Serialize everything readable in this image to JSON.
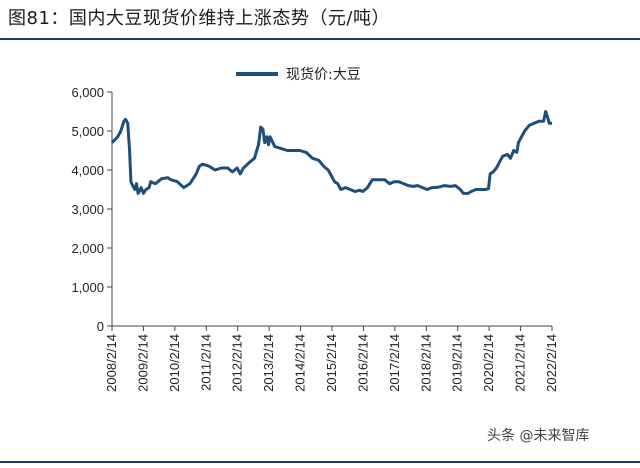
{
  "title": "图81：国内大豆现货价维持上涨态势（元/吨）",
  "watermark": "头条 @未来智库",
  "colors": {
    "series": "#1f4e79",
    "rule": "#1f3864",
    "axis": "#444444"
  },
  "chart_data": {
    "type": "line",
    "title": "",
    "xlabel": "",
    "ylabel": "",
    "ylim": [
      0,
      6000
    ],
    "yticks": [
      0,
      1000,
      2000,
      3000,
      4000,
      5000,
      6000
    ],
    "ytick_labels": [
      "0",
      "1,000",
      "2,000",
      "3,000",
      "4,000",
      "5,000",
      "6,000"
    ],
    "xtick_labels": [
      "2008/2/14",
      "2009/2/14",
      "2010/2/14",
      "2011/2/14",
      "2012/2/14",
      "2013/2/14",
      "2014/2/14",
      "2015/2/14",
      "2016/2/14",
      "2017/2/14",
      "2018/2/14",
      "2019/2/14",
      "2020/2/14",
      "2021/2/14",
      "2022/2/14"
    ],
    "xlim": [
      2008.12,
      2022.12
    ],
    "grid": false,
    "legend_position": "top-center",
    "series": [
      {
        "name": "现货价:大豆",
        "points": [
          [
            2008.12,
            4700
          ],
          [
            2008.3,
            4850
          ],
          [
            2008.4,
            5000
          ],
          [
            2008.5,
            5250
          ],
          [
            2008.55,
            5300
          ],
          [
            2008.62,
            5200
          ],
          [
            2008.68,
            4500
          ],
          [
            2008.72,
            3700
          ],
          [
            2008.78,
            3600
          ],
          [
            2008.85,
            3500
          ],
          [
            2008.9,
            3650
          ],
          [
            2008.95,
            3400
          ],
          [
            2009.05,
            3550
          ],
          [
            2009.12,
            3400
          ],
          [
            2009.2,
            3500
          ],
          [
            2009.3,
            3550
          ],
          [
            2009.35,
            3700
          ],
          [
            2009.5,
            3650
          ],
          [
            2009.7,
            3780
          ],
          [
            2009.9,
            3800
          ],
          [
            2010.0,
            3750
          ],
          [
            2010.2,
            3700
          ],
          [
            2010.4,
            3550
          ],
          [
            2010.6,
            3650
          ],
          [
            2010.8,
            3900
          ],
          [
            2010.9,
            4100
          ],
          [
            2011.0,
            4150
          ],
          [
            2011.2,
            4100
          ],
          [
            2011.4,
            4000
          ],
          [
            2011.6,
            4050
          ],
          [
            2011.8,
            4050
          ],
          [
            2011.95,
            3950
          ],
          [
            2012.1,
            4050
          ],
          [
            2012.2,
            3900
          ],
          [
            2012.3,
            4050
          ],
          [
            2012.5,
            4200
          ],
          [
            2012.65,
            4300
          ],
          [
            2012.78,
            4650
          ],
          [
            2012.85,
            5100
          ],
          [
            2012.92,
            5050
          ],
          [
            2012.98,
            4700
          ],
          [
            2013.05,
            4850
          ],
          [
            2013.1,
            4650
          ],
          [
            2013.15,
            4850
          ],
          [
            2013.3,
            4600
          ],
          [
            2013.5,
            4550
          ],
          [
            2013.7,
            4500
          ],
          [
            2013.9,
            4500
          ],
          [
            2014.1,
            4500
          ],
          [
            2014.3,
            4450
          ],
          [
            2014.5,
            4300
          ],
          [
            2014.7,
            4250
          ],
          [
            2014.85,
            4100
          ],
          [
            2015.0,
            4000
          ],
          [
            2015.1,
            3850
          ],
          [
            2015.2,
            3700
          ],
          [
            2015.3,
            3650
          ],
          [
            2015.4,
            3500
          ],
          [
            2015.55,
            3550
          ],
          [
            2015.7,
            3500
          ],
          [
            2015.85,
            3450
          ],
          [
            2016.0,
            3480
          ],
          [
            2016.1,
            3450
          ],
          [
            2016.25,
            3550
          ],
          [
            2016.4,
            3750
          ],
          [
            2016.6,
            3750
          ],
          [
            2016.8,
            3750
          ],
          [
            2016.95,
            3650
          ],
          [
            2017.1,
            3700
          ],
          [
            2017.25,
            3700
          ],
          [
            2017.4,
            3650
          ],
          [
            2017.55,
            3600
          ],
          [
            2017.7,
            3580
          ],
          [
            2017.85,
            3600
          ],
          [
            2018.0,
            3550
          ],
          [
            2018.15,
            3500
          ],
          [
            2018.3,
            3550
          ],
          [
            2018.5,
            3560
          ],
          [
            2018.7,
            3600
          ],
          [
            2018.9,
            3580
          ],
          [
            2019.05,
            3600
          ],
          [
            2019.2,
            3500
          ],
          [
            2019.3,
            3400
          ],
          [
            2019.45,
            3400
          ],
          [
            2019.55,
            3450
          ],
          [
            2019.7,
            3500
          ],
          [
            2019.85,
            3500
          ],
          [
            2020.0,
            3500
          ],
          [
            2020.1,
            3520
          ],
          [
            2020.15,
            3900
          ],
          [
            2020.25,
            3950
          ],
          [
            2020.35,
            4050
          ],
          [
            2020.45,
            4200
          ],
          [
            2020.55,
            4350
          ],
          [
            2020.7,
            4400
          ],
          [
            2020.8,
            4300
          ],
          [
            2020.9,
            4500
          ],
          [
            2021.0,
            4450
          ],
          [
            2021.05,
            4700
          ],
          [
            2021.15,
            4850
          ],
          [
            2021.25,
            5000
          ],
          [
            2021.4,
            5150
          ],
          [
            2021.55,
            5200
          ],
          [
            2021.7,
            5250
          ],
          [
            2021.85,
            5250
          ],
          [
            2021.92,
            5500
          ],
          [
            2021.98,
            5350
          ],
          [
            2022.03,
            5200
          ],
          [
            2022.12,
            5200
          ]
        ]
      }
    ]
  }
}
